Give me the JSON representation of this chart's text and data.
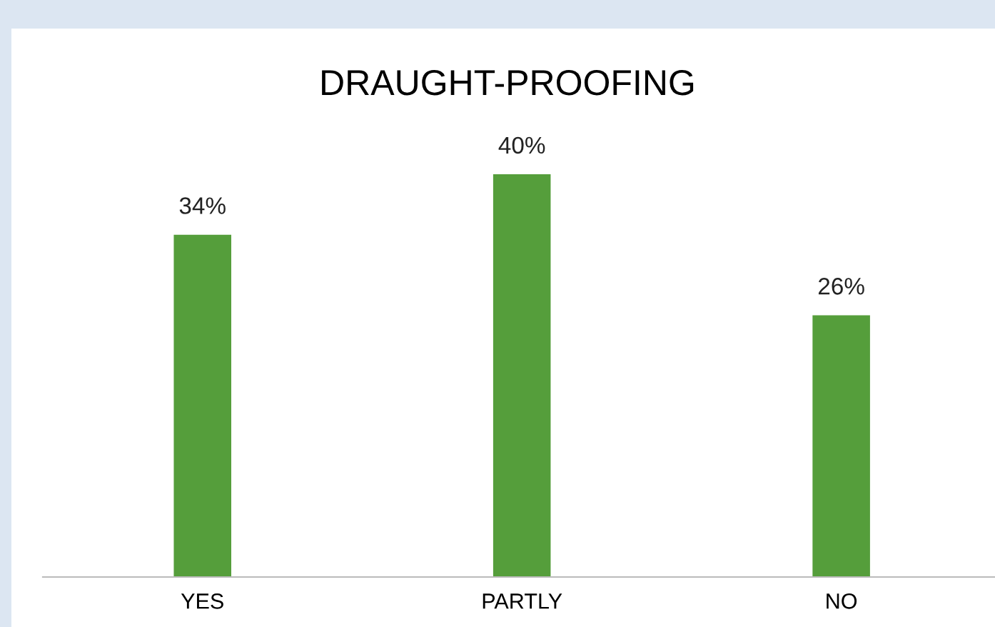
{
  "chart_data": {
    "type": "bar",
    "title": "DRAUGHT-PROOFING",
    "categories": [
      "YES",
      "PARTLY",
      "NO"
    ],
    "values": [
      34,
      40,
      26
    ],
    "value_labels": [
      "34%",
      "40%",
      "26%"
    ],
    "color": "#559e3b"
  }
}
